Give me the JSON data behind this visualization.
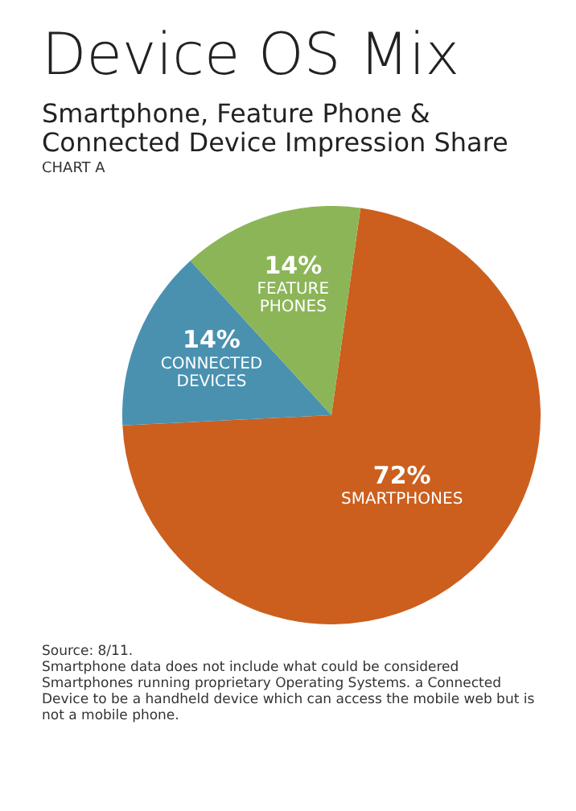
{
  "chart_data": {
    "type": "pie",
    "title": "Device OS Mix",
    "subtitle": "Smartphone, Feature Phone & Connected Device Impression Share",
    "categories": [
      "SMARTPHONES",
      "CONNECTED DEVICES",
      "FEATURE PHONES"
    ],
    "values": [
      72,
      14,
      14
    ],
    "colors": [
      "#cc5f1e",
      "#4a91b0",
      "#8cb558"
    ],
    "value_labels": [
      "72%",
      "14%",
      "14%"
    ],
    "legend": false,
    "annotations": [
      "CHART A",
      "Source: 8/11.",
      "Smartphone data does not include what could be considered Smartphones running proprietary Operating Systems. a Connected Device to be a handheld device which can access the mobile web but is not a mobile phone."
    ]
  }
}
